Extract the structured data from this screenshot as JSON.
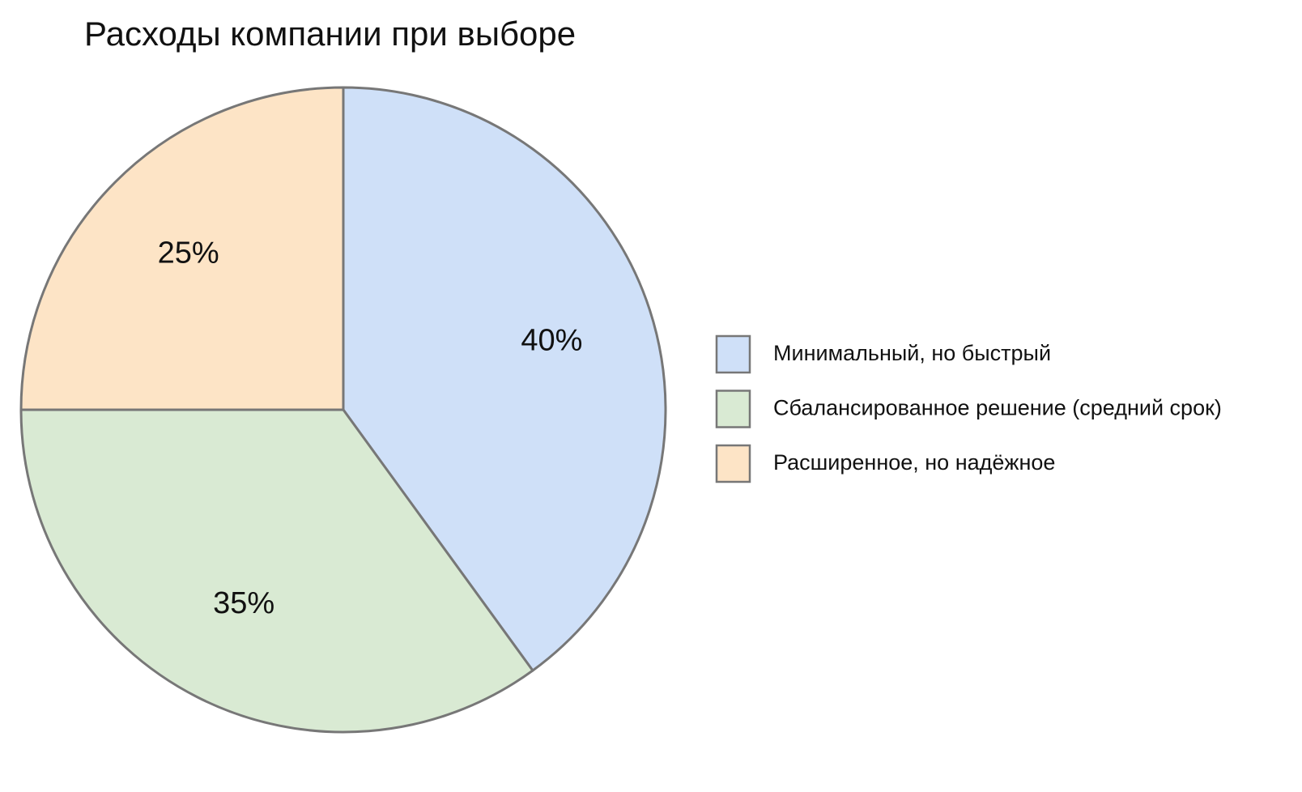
{
  "chart_data": {
    "type": "pie",
    "title": "Расходы компании при выборе",
    "categories": [
      "Минимальный, но быстрый",
      "Сбалансированное решение (средний срок)",
      "Расширенное, но надёжное"
    ],
    "values": [
      40,
      35,
      25
    ],
    "value_labels": [
      "40%",
      "35%",
      "25%"
    ],
    "colors": [
      "#cfe0f8",
      "#d9ead3",
      "#fde4c6"
    ],
    "legend": "right"
  }
}
